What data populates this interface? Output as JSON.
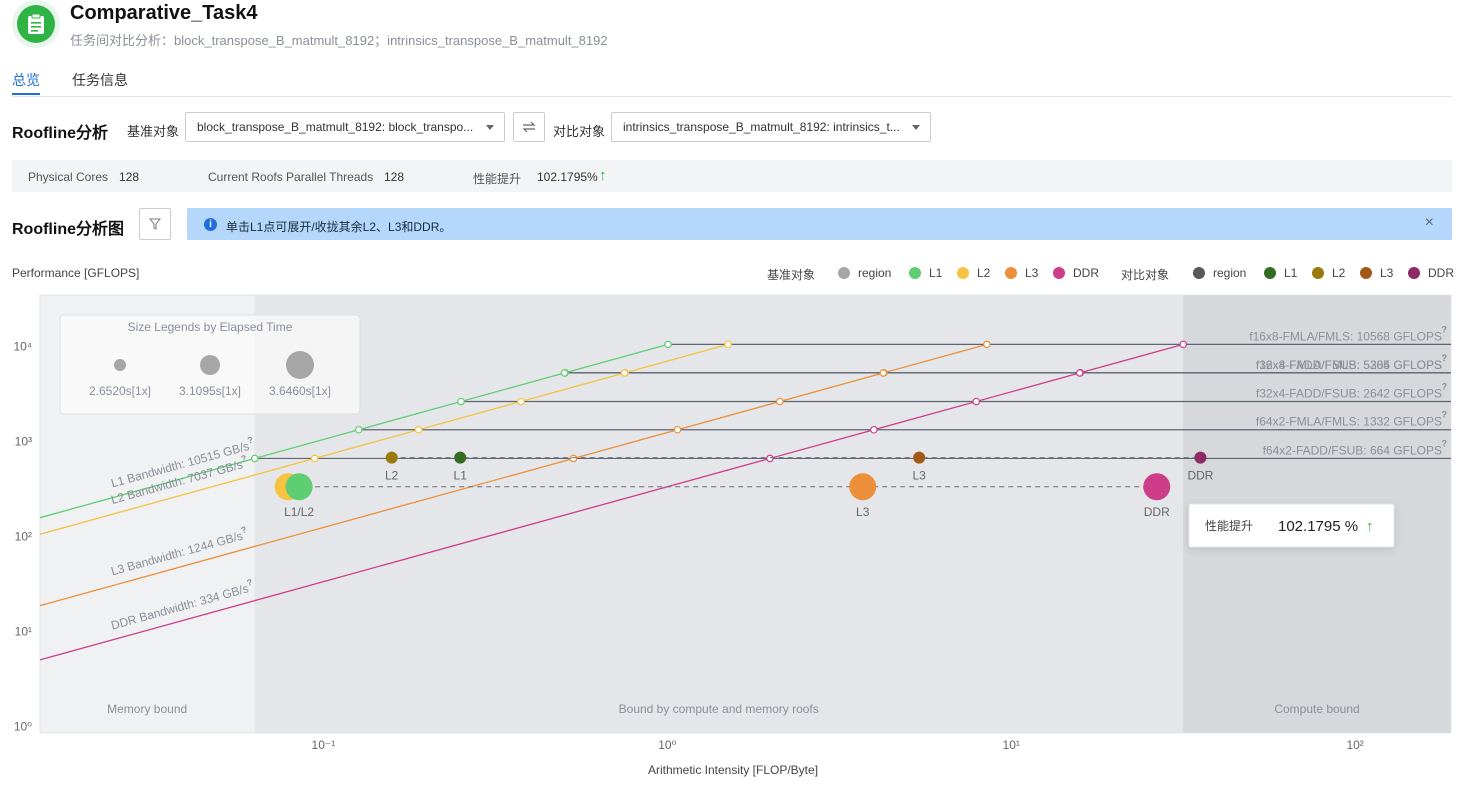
{
  "header": {
    "title": "Comparative_Task4",
    "subtitle": "任务间对比分析：block_transpose_B_matmult_8192；intrinsics_transpose_B_matmult_8192",
    "icon": "clipboard-icon",
    "accent": "#2fb344"
  },
  "tabs": [
    {
      "label": "总览",
      "active": true
    },
    {
      "label": "任务信息",
      "active": false
    }
  ],
  "roofline": {
    "title": "Roofline分析",
    "baseline_label": "基准对象",
    "baseline_value": "block_transpose_B_matmult_8192: block_transpo...",
    "compare_label": "对比对象",
    "compare_value": "intrinsics_transpose_B_matmult_8192: intrinsics_t..."
  },
  "info": {
    "cores_label": "Physical Cores",
    "cores_value": "128",
    "threads_label": "Current Roofs Parallel Threads",
    "threads_value": "128",
    "perf_label": "性能提升",
    "perf_value": "102.1795%"
  },
  "chart_section": {
    "title": "Roofline分析图",
    "banner": "单击L1点可展开/收拢其余L2、L3和DDR。",
    "perf_axis_label": "Performance [GFLOPS]"
  },
  "legend": {
    "baseline_label": "基准对象",
    "compare_label": "对比对象",
    "baseline_items": [
      {
        "name": "region",
        "color": "#a6a6a6"
      },
      {
        "name": "L1",
        "color": "#5fce73"
      },
      {
        "name": "L2",
        "color": "#f5c242"
      },
      {
        "name": "L3",
        "color": "#ec8f3a"
      },
      {
        "name": "DDR",
        "color": "#cd3d8a"
      }
    ],
    "compare_items": [
      {
        "name": "region",
        "color": "#595959"
      },
      {
        "name": "L1",
        "color": "#356b25"
      },
      {
        "name": "L2",
        "color": "#9a7a0c"
      },
      {
        "name": "L3",
        "color": "#a35818"
      },
      {
        "name": "DDR",
        "color": "#8c2a63"
      }
    ]
  },
  "size_legend": {
    "title": "Size Legends by Elapsed Time",
    "items": [
      "2.6520s[1x]",
      "3.1095s[1x]",
      "3.6460s[1x]"
    ]
  },
  "tooltip": {
    "label": "性能提升",
    "value": "102.1795 %"
  },
  "chart_data": {
    "type": "scatter",
    "xlabel": "Arithmetic Intensity [FLOP/Byte]",
    "ylabel": "Performance [GFLOPS]",
    "xscale": "log",
    "yscale": "log",
    "xlim": [
      0.015,
      190
    ],
    "ylim": [
      0.85,
      35000
    ],
    "xticks": [
      {
        "value": 0.1,
        "label": "10⁻¹"
      },
      {
        "value": 1,
        "label": "10⁰"
      },
      {
        "value": 10,
        "label": "10¹"
      },
      {
        "value": 100,
        "label": "10²"
      }
    ],
    "yticks": [
      {
        "value": 1,
        "label": "10⁰"
      },
      {
        "value": 10,
        "label": "10¹"
      },
      {
        "value": 100,
        "label": "10²"
      },
      {
        "value": 1000,
        "label": "10³"
      },
      {
        "value": 10000,
        "label": "10⁴"
      }
    ],
    "bandwidths": [
      {
        "name": "L1 Bandwidth: 10515 GB/s",
        "value": 10515,
        "color": "#5fce73"
      },
      {
        "name": "L2 Bandwidth: 7037 GB/s",
        "value": 7037,
        "color": "#f5c242"
      },
      {
        "name": "L3 Bandwidth: 1244 GB/s",
        "value": 1244,
        "color": "#ec8f3a"
      },
      {
        "name": "DDR Bandwidth: 334 GB/s",
        "value": 334,
        "color": "#cd3d8a"
      }
    ],
    "compute_roofs": [
      {
        "name": "f16x8-FMLA/FMLS: 10568 GFLOPS",
        "value": 10568
      },
      {
        "name": "f16x8-FADD/FSUB: 5305 GFLOPS",
        "value": 5305
      },
      {
        "name": "f32x4-FMLA/FMLS: 5284 GFLOPS",
        "value": 5284
      },
      {
        "name": "f32x4-FADD/FSUB: 2642 GFLOPS",
        "value": 2642
      },
      {
        "name": "f64x2-FMLA/FMLS: 1332 GFLOPS",
        "value": 1332
      },
      {
        "name": "f64x2-FADD/FSUB: 664 GFLOPS",
        "value": 664
      }
    ],
    "regions": [
      {
        "name": "Memory bound",
        "x_from": 0.015,
        "x_to": 0.063
      },
      {
        "name": "Bound by compute and memory roofs",
        "x_from": 0.063,
        "x_to": 31.6
      },
      {
        "name": "Compute bound",
        "x_from": 31.6,
        "x_to": 190
      }
    ],
    "baseline_points": [
      {
        "label": "L1/L2",
        "name": "L1",
        "x": 0.085,
        "y": 334,
        "color": "#5fce73",
        "elapsed": 3.646
      },
      {
        "name": "L2",
        "x": 0.079,
        "y": 334,
        "color": "#f5c242",
        "elapsed": 3.646
      },
      {
        "label": "L3",
        "name": "L3",
        "x": 3.7,
        "y": 334,
        "color": "#ec8f3a",
        "elapsed": 3.646
      },
      {
        "label": "DDR",
        "name": "DDR",
        "x": 26.5,
        "y": 334,
        "color": "#cd3d8a",
        "elapsed": 3.646
      }
    ],
    "compare_points": [
      {
        "label": "L2",
        "name": "L2",
        "x": 0.158,
        "y": 677,
        "color": "#9a7a0c",
        "elapsed": 2.652
      },
      {
        "label": "L1",
        "name": "L1",
        "x": 0.25,
        "y": 677,
        "color": "#356b25",
        "elapsed": 2.652
      },
      {
        "label": "L3",
        "name": "L3",
        "x": 5.4,
        "y": 677,
        "color": "#a35818",
        "elapsed": 2.652
      },
      {
        "label": "DDR",
        "name": "DDR",
        "x": 35.5,
        "y": 677,
        "color": "#8c2a63",
        "elapsed": 2.652
      }
    ]
  }
}
